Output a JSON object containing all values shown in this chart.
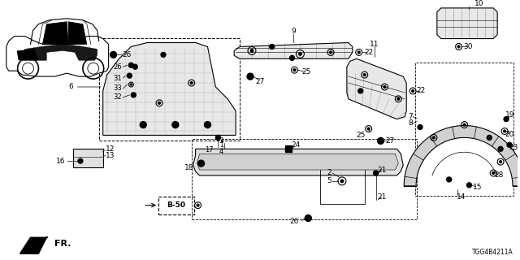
{
  "bg_color": "#ffffff",
  "diagram_id": "TGG4B4211A",
  "black": "#000000",
  "gray": "#666666",
  "lightgray": "#cccccc",
  "darkgray": "#333333"
}
